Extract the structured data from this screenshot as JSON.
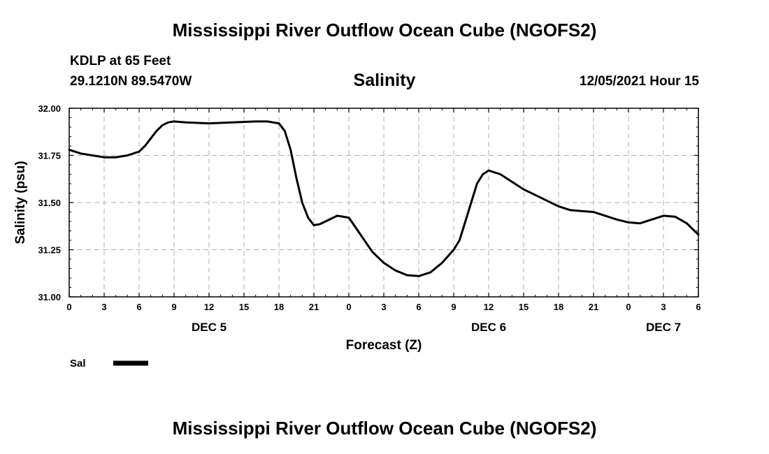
{
  "page": {
    "title": "Mississippi River Outflow Ocean Cube (NGOFS2)",
    "footer_title": "Mississippi River Outflow Ocean Cube (NGOFS2)",
    "station_name": "KDLP at 65 Feet",
    "station_coords": "29.1210N  89.5470W",
    "forecast_time": "12/05/2021 Hour 15"
  },
  "chart_data": {
    "type": "line",
    "title": "Salinity",
    "xlabel": "Forecast (Z)",
    "ylabel": "Salinity (psu)",
    "xlim": [
      0,
      54
    ],
    "ylim": [
      31.0,
      32.0
    ],
    "grid": true,
    "legend_position": "bottom-left",
    "x_ticks": [
      {
        "x": 0,
        "label": "0"
      },
      {
        "x": 3,
        "label": "3"
      },
      {
        "x": 6,
        "label": "6"
      },
      {
        "x": 9,
        "label": "9"
      },
      {
        "x": 12,
        "label": "12"
      },
      {
        "x": 15,
        "label": "15"
      },
      {
        "x": 18,
        "label": "18"
      },
      {
        "x": 21,
        "label": "21"
      },
      {
        "x": 24,
        "label": "0"
      },
      {
        "x": 27,
        "label": "3"
      },
      {
        "x": 30,
        "label": "6"
      },
      {
        "x": 33,
        "label": "9"
      },
      {
        "x": 36,
        "label": "12"
      },
      {
        "x": 39,
        "label": "15"
      },
      {
        "x": 42,
        "label": "18"
      },
      {
        "x": 45,
        "label": "21"
      },
      {
        "x": 48,
        "label": "0"
      },
      {
        "x": 51,
        "label": "3"
      },
      {
        "x": 54,
        "label": "6"
      }
    ],
    "y_ticks": [
      {
        "y": 31.0,
        "label": "31.00"
      },
      {
        "y": 31.25,
        "label": "31.25"
      },
      {
        "y": 31.5,
        "label": "31.50"
      },
      {
        "y": 31.75,
        "label": "31.75"
      },
      {
        "y": 32.0,
        "label": "32.00"
      }
    ],
    "date_labels": [
      {
        "x": 12,
        "label": "DEC 5"
      },
      {
        "x": 36,
        "label": "DEC 6"
      },
      {
        "x": 51,
        "label": "DEC 7"
      }
    ],
    "series": [
      {
        "name": "Sal",
        "color": "#000000",
        "x": [
          0,
          1,
          2,
          3,
          4,
          5,
          6,
          6.5,
          7,
          7.5,
          8,
          8.5,
          9,
          10,
          12,
          14,
          16,
          17,
          18,
          18.5,
          19,
          19.5,
          20,
          20.5,
          21,
          21.5,
          22,
          23,
          24,
          25,
          26,
          27,
          28,
          29,
          30,
          31,
          32,
          33,
          33.5,
          34,
          34.5,
          35,
          35.5,
          36,
          37,
          38,
          39,
          40,
          41,
          42,
          43,
          44,
          45,
          46,
          47,
          48,
          49,
          50,
          51,
          52,
          53,
          54
        ],
        "y": [
          31.78,
          31.76,
          31.75,
          31.74,
          31.74,
          31.75,
          31.77,
          31.8,
          31.84,
          31.88,
          31.91,
          31.925,
          31.93,
          31.925,
          31.92,
          31.925,
          31.93,
          31.93,
          31.92,
          31.88,
          31.78,
          31.63,
          31.5,
          31.42,
          31.38,
          31.385,
          31.4,
          31.43,
          31.42,
          31.33,
          31.24,
          31.18,
          31.14,
          31.115,
          31.11,
          31.13,
          31.18,
          31.25,
          31.3,
          31.4,
          31.5,
          31.6,
          31.65,
          31.67,
          31.65,
          31.61,
          31.57,
          31.54,
          31.51,
          31.48,
          31.46,
          31.455,
          31.45,
          31.43,
          31.41,
          31.395,
          31.39,
          31.41,
          31.43,
          31.425,
          31.39,
          31.33
        ]
      }
    ]
  }
}
